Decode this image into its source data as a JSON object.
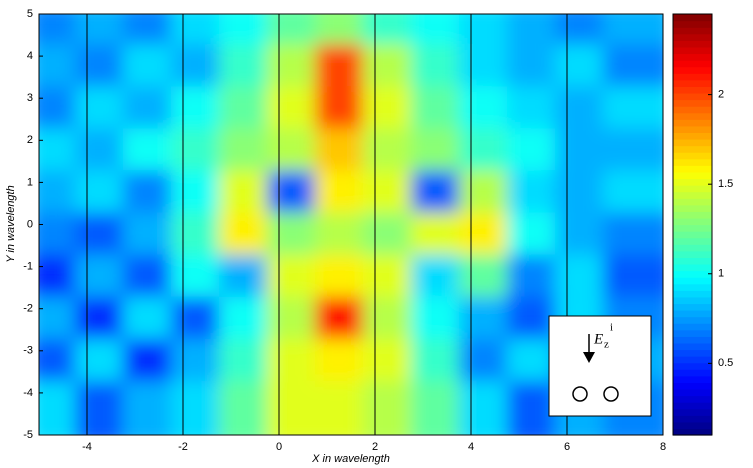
{
  "chart_data": {
    "type": "contour",
    "xlabel": "X in wavelength",
    "ylabel": "Y in wavelength",
    "xlim": [
      -5,
      8
    ],
    "ylim": [
      -5,
      5
    ],
    "xticks": [
      -4,
      -2,
      0,
      2,
      4,
      6,
      8
    ],
    "yticks": [
      -5,
      -4,
      -3,
      -2,
      -1,
      0,
      1,
      2,
      3,
      4,
      5
    ],
    "xgrid": true,
    "colormap": "jet",
    "zlim": [
      0.1,
      2.45
    ],
    "zticks": [
      0.5,
      1,
      1.5,
      2
    ],
    "x": [
      -4.5,
      -3.5,
      -2.5,
      -1.5,
      -0.5,
      0.5,
      1.5,
      2.5,
      3.5,
      4.5,
      5.5,
      6.5,
      7.5
    ],
    "y": [
      4.5,
      3.5,
      2.5,
      1.5,
      0.5,
      -0.5,
      -1.5,
      -2.5,
      -3.5,
      -4.5
    ],
    "z": [
      [
        0.7,
        0.8,
        0.7,
        0.9,
        1.0,
        1.2,
        1.3,
        1.1,
        1.0,
        0.9,
        0.8,
        0.7,
        0.8
      ],
      [
        0.8,
        0.7,
        0.9,
        0.8,
        1.1,
        1.4,
        2.0,
        1.4,
        1.1,
        0.9,
        0.8,
        0.9,
        0.7
      ],
      [
        0.7,
        0.9,
        0.8,
        1.0,
        1.2,
        1.5,
        2.0,
        1.5,
        1.2,
        1.0,
        0.9,
        0.8,
        0.9
      ],
      [
        0.9,
        0.8,
        1.0,
        1.1,
        1.3,
        1.4,
        1.7,
        1.4,
        1.3,
        1.1,
        1.0,
        0.8,
        0.8
      ],
      [
        0.8,
        0.9,
        0.7,
        1.0,
        1.5,
        0.6,
        1.6,
        1.5,
        0.6,
        1.4,
        0.9,
        0.8,
        0.9
      ],
      [
        0.7,
        0.6,
        0.8,
        1.1,
        1.6,
        1.3,
        1.4,
        1.3,
        1.5,
        1.6,
        1.0,
        0.8,
        0.7
      ],
      [
        0.5,
        0.8,
        0.6,
        1.0,
        0.8,
        1.5,
        1.6,
        1.5,
        0.9,
        1.2,
        0.7,
        0.9,
        0.6
      ],
      [
        0.8,
        0.5,
        0.9,
        0.6,
        1.0,
        1.4,
        2.1,
        1.4,
        1.0,
        0.8,
        0.6,
        0.9,
        0.7
      ],
      [
        0.6,
        0.9,
        0.5,
        0.8,
        1.1,
        1.5,
        1.6,
        1.5,
        1.1,
        0.7,
        0.9,
        0.6,
        0.8
      ],
      [
        0.9,
        0.6,
        0.8,
        0.9,
        1.2,
        1.5,
        1.5,
        1.4,
        1.2,
        0.9,
        0.6,
        0.8,
        0.7
      ]
    ],
    "inset": {
      "label": "E",
      "subscript": "z",
      "superscript": "i"
    }
  }
}
